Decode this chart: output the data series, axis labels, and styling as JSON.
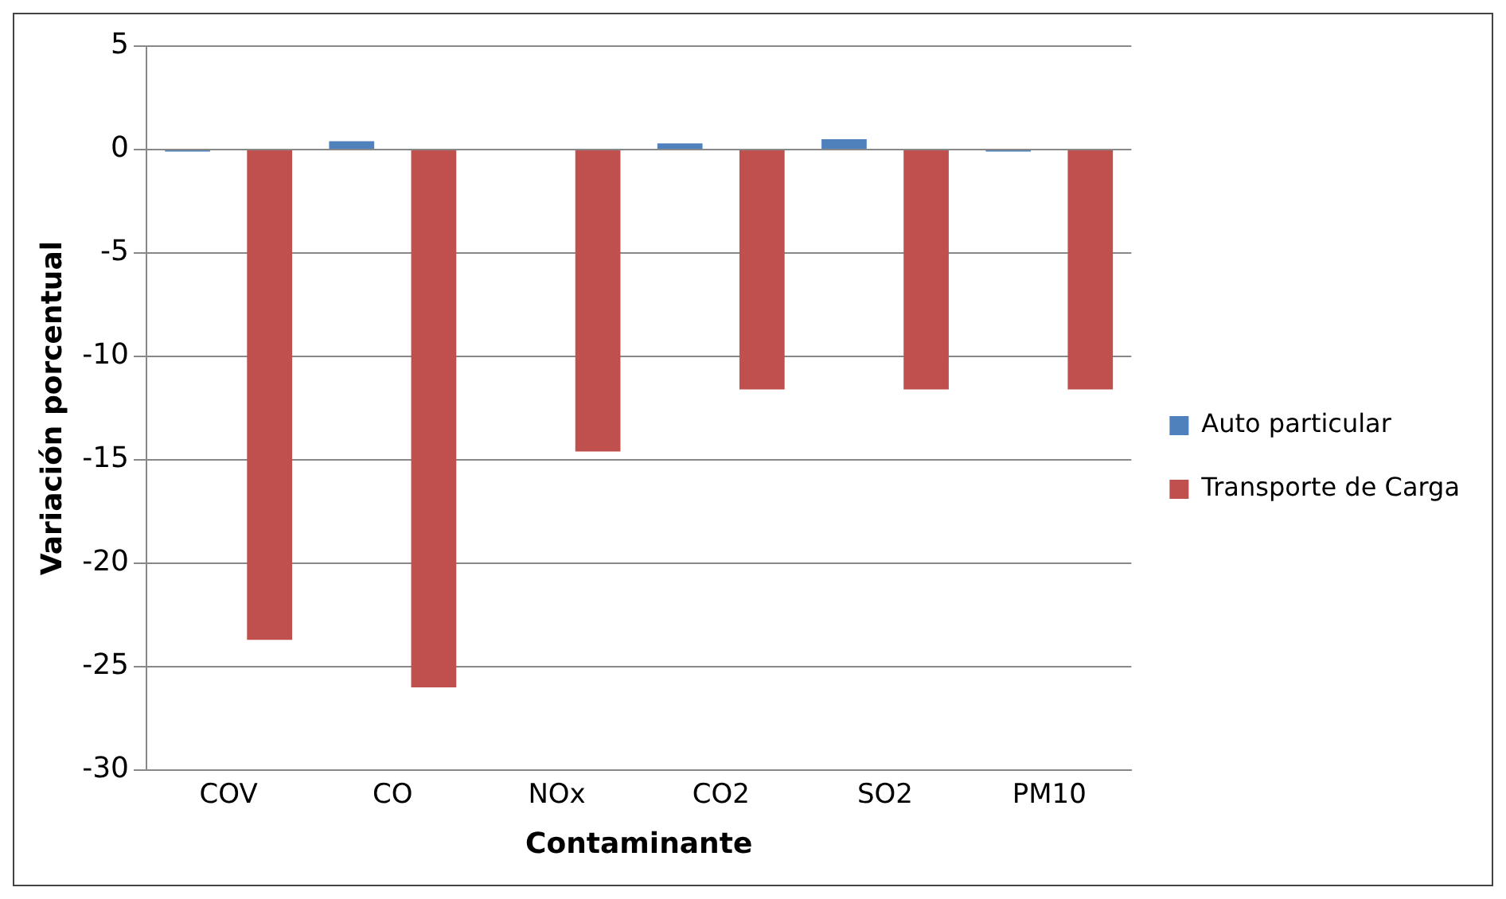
{
  "chart_data": {
    "type": "bar",
    "xlabel": "Contaminante",
    "ylabel": "Variación porcentual",
    "categories": [
      "COV",
      "CO",
      "NOx",
      "CO2",
      "SO2",
      "PM10"
    ],
    "series": [
      {
        "name": "Auto particular",
        "color": "#4f81bd",
        "values": [
          -0.1,
          0.4,
          0,
          0.3,
          0.5,
          -0.1
        ]
      },
      {
        "name": "Transporte de Carga",
        "color": "#c0504d",
        "values": [
          -23.7,
          -26.0,
          -14.6,
          -11.6,
          -11.6,
          -11.6
        ]
      }
    ],
    "ylim": [
      -30,
      5
    ],
    "yticks": [
      -30,
      -25,
      -20,
      -15,
      -10,
      -5,
      0,
      5
    ],
    "grid": "y",
    "legend": "right"
  }
}
